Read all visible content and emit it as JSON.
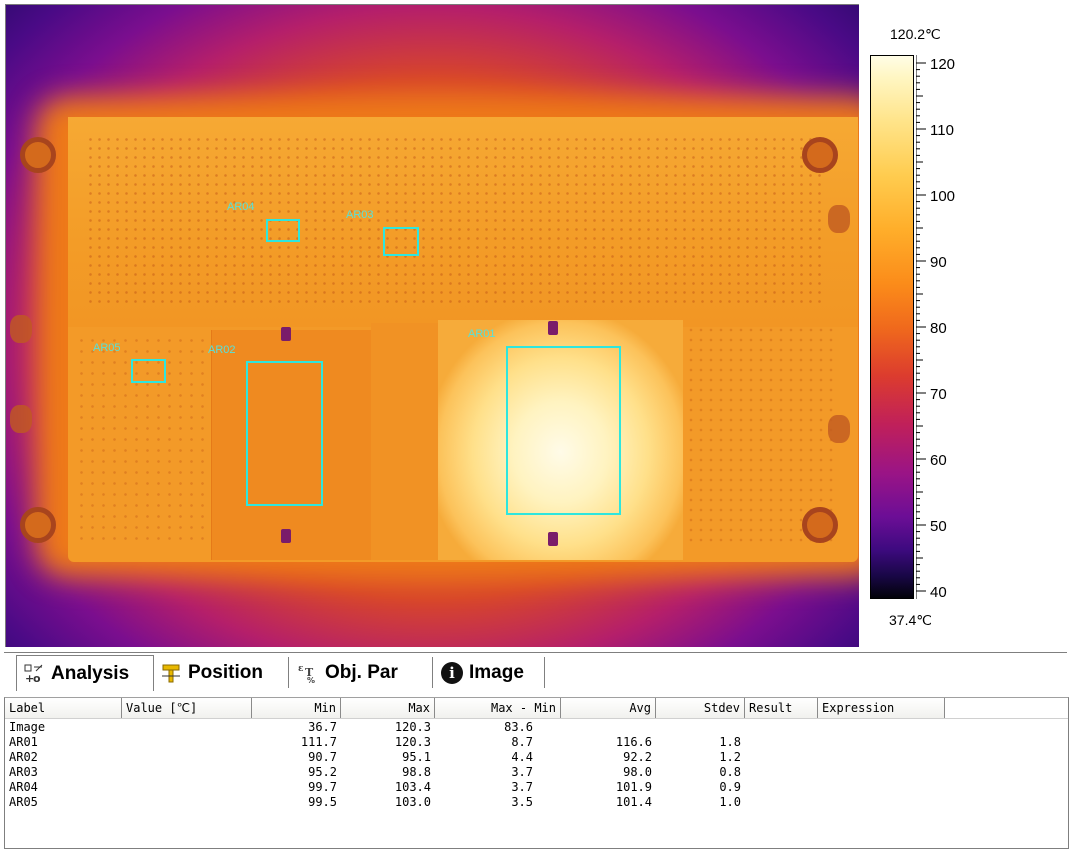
{
  "thermal_image": {
    "rois": [
      {
        "label": "AR01"
      },
      {
        "label": "AR02"
      },
      {
        "label": "AR03"
      },
      {
        "label": "AR04"
      },
      {
        "label": "AR05"
      }
    ]
  },
  "scale": {
    "max_label": "120.2℃",
    "min_label": "37.4℃",
    "ticks": [
      "120",
      "110",
      "100",
      "90",
      "80",
      "70",
      "60",
      "50",
      "40"
    ]
  },
  "tabs": [
    {
      "label": "Analysis",
      "icon": "analysis-icon",
      "active": true
    },
    {
      "label": "Position",
      "icon": "position-icon",
      "active": false
    },
    {
      "label": "Obj. Par",
      "icon": "object-parameters-icon",
      "active": false
    },
    {
      "label": "Image",
      "icon": "info-icon",
      "active": false
    }
  ],
  "table": {
    "columns": [
      "Label",
      "Value [℃]",
      "Min",
      "Max",
      "Max - Min",
      "Avg",
      "Stdev",
      "Result",
      "Expression"
    ],
    "rows": [
      [
        "Image",
        "",
        "36.7",
        "120.3",
        "83.6",
        "",
        "",
        "",
        ""
      ],
      [
        "AR01",
        "",
        "111.7",
        "120.3",
        "8.7",
        "116.6",
        "1.8",
        "",
        ""
      ],
      [
        "AR02",
        "",
        "90.7",
        "95.1",
        "4.4",
        "92.2",
        "1.2",
        "",
        ""
      ],
      [
        "AR03",
        "",
        "95.2",
        "98.8",
        "3.7",
        "98.0",
        "0.8",
        "",
        ""
      ],
      [
        "AR04",
        "",
        "99.7",
        "103.4",
        "3.7",
        "101.9",
        "0.9",
        "",
        ""
      ],
      [
        "AR05",
        "",
        "99.5",
        "103.0",
        "3.5",
        "101.4",
        "1.0",
        "",
        ""
      ]
    ]
  }
}
